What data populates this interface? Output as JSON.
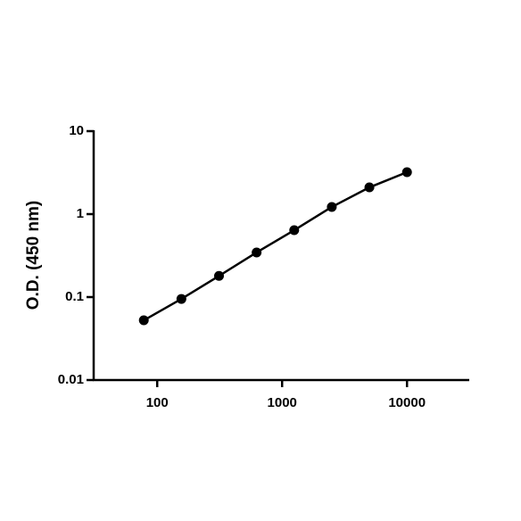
{
  "chart_data": {
    "type": "line",
    "y_label": "O.D. (450 nm)",
    "x": [
      78.125,
      156.25,
      312.5,
      625,
      1250,
      2500,
      5000,
      10000
    ],
    "series": [
      {
        "color": "#000000",
        "values": [
          0.0525,
          0.095,
          0.18,
          0.345,
          0.64,
          1.22,
          2.1,
          3.2
        ]
      }
    ],
    "x_scale": "log",
    "y_scale": "log",
    "xlim": [
      31,
      31000
    ],
    "xticks": [
      100,
      1000,
      10000
    ],
    "ylim": [
      0.01,
      10
    ],
    "yticks": [
      0.01,
      0.1,
      1,
      10
    ],
    "grid": false,
    "markers": true
  }
}
